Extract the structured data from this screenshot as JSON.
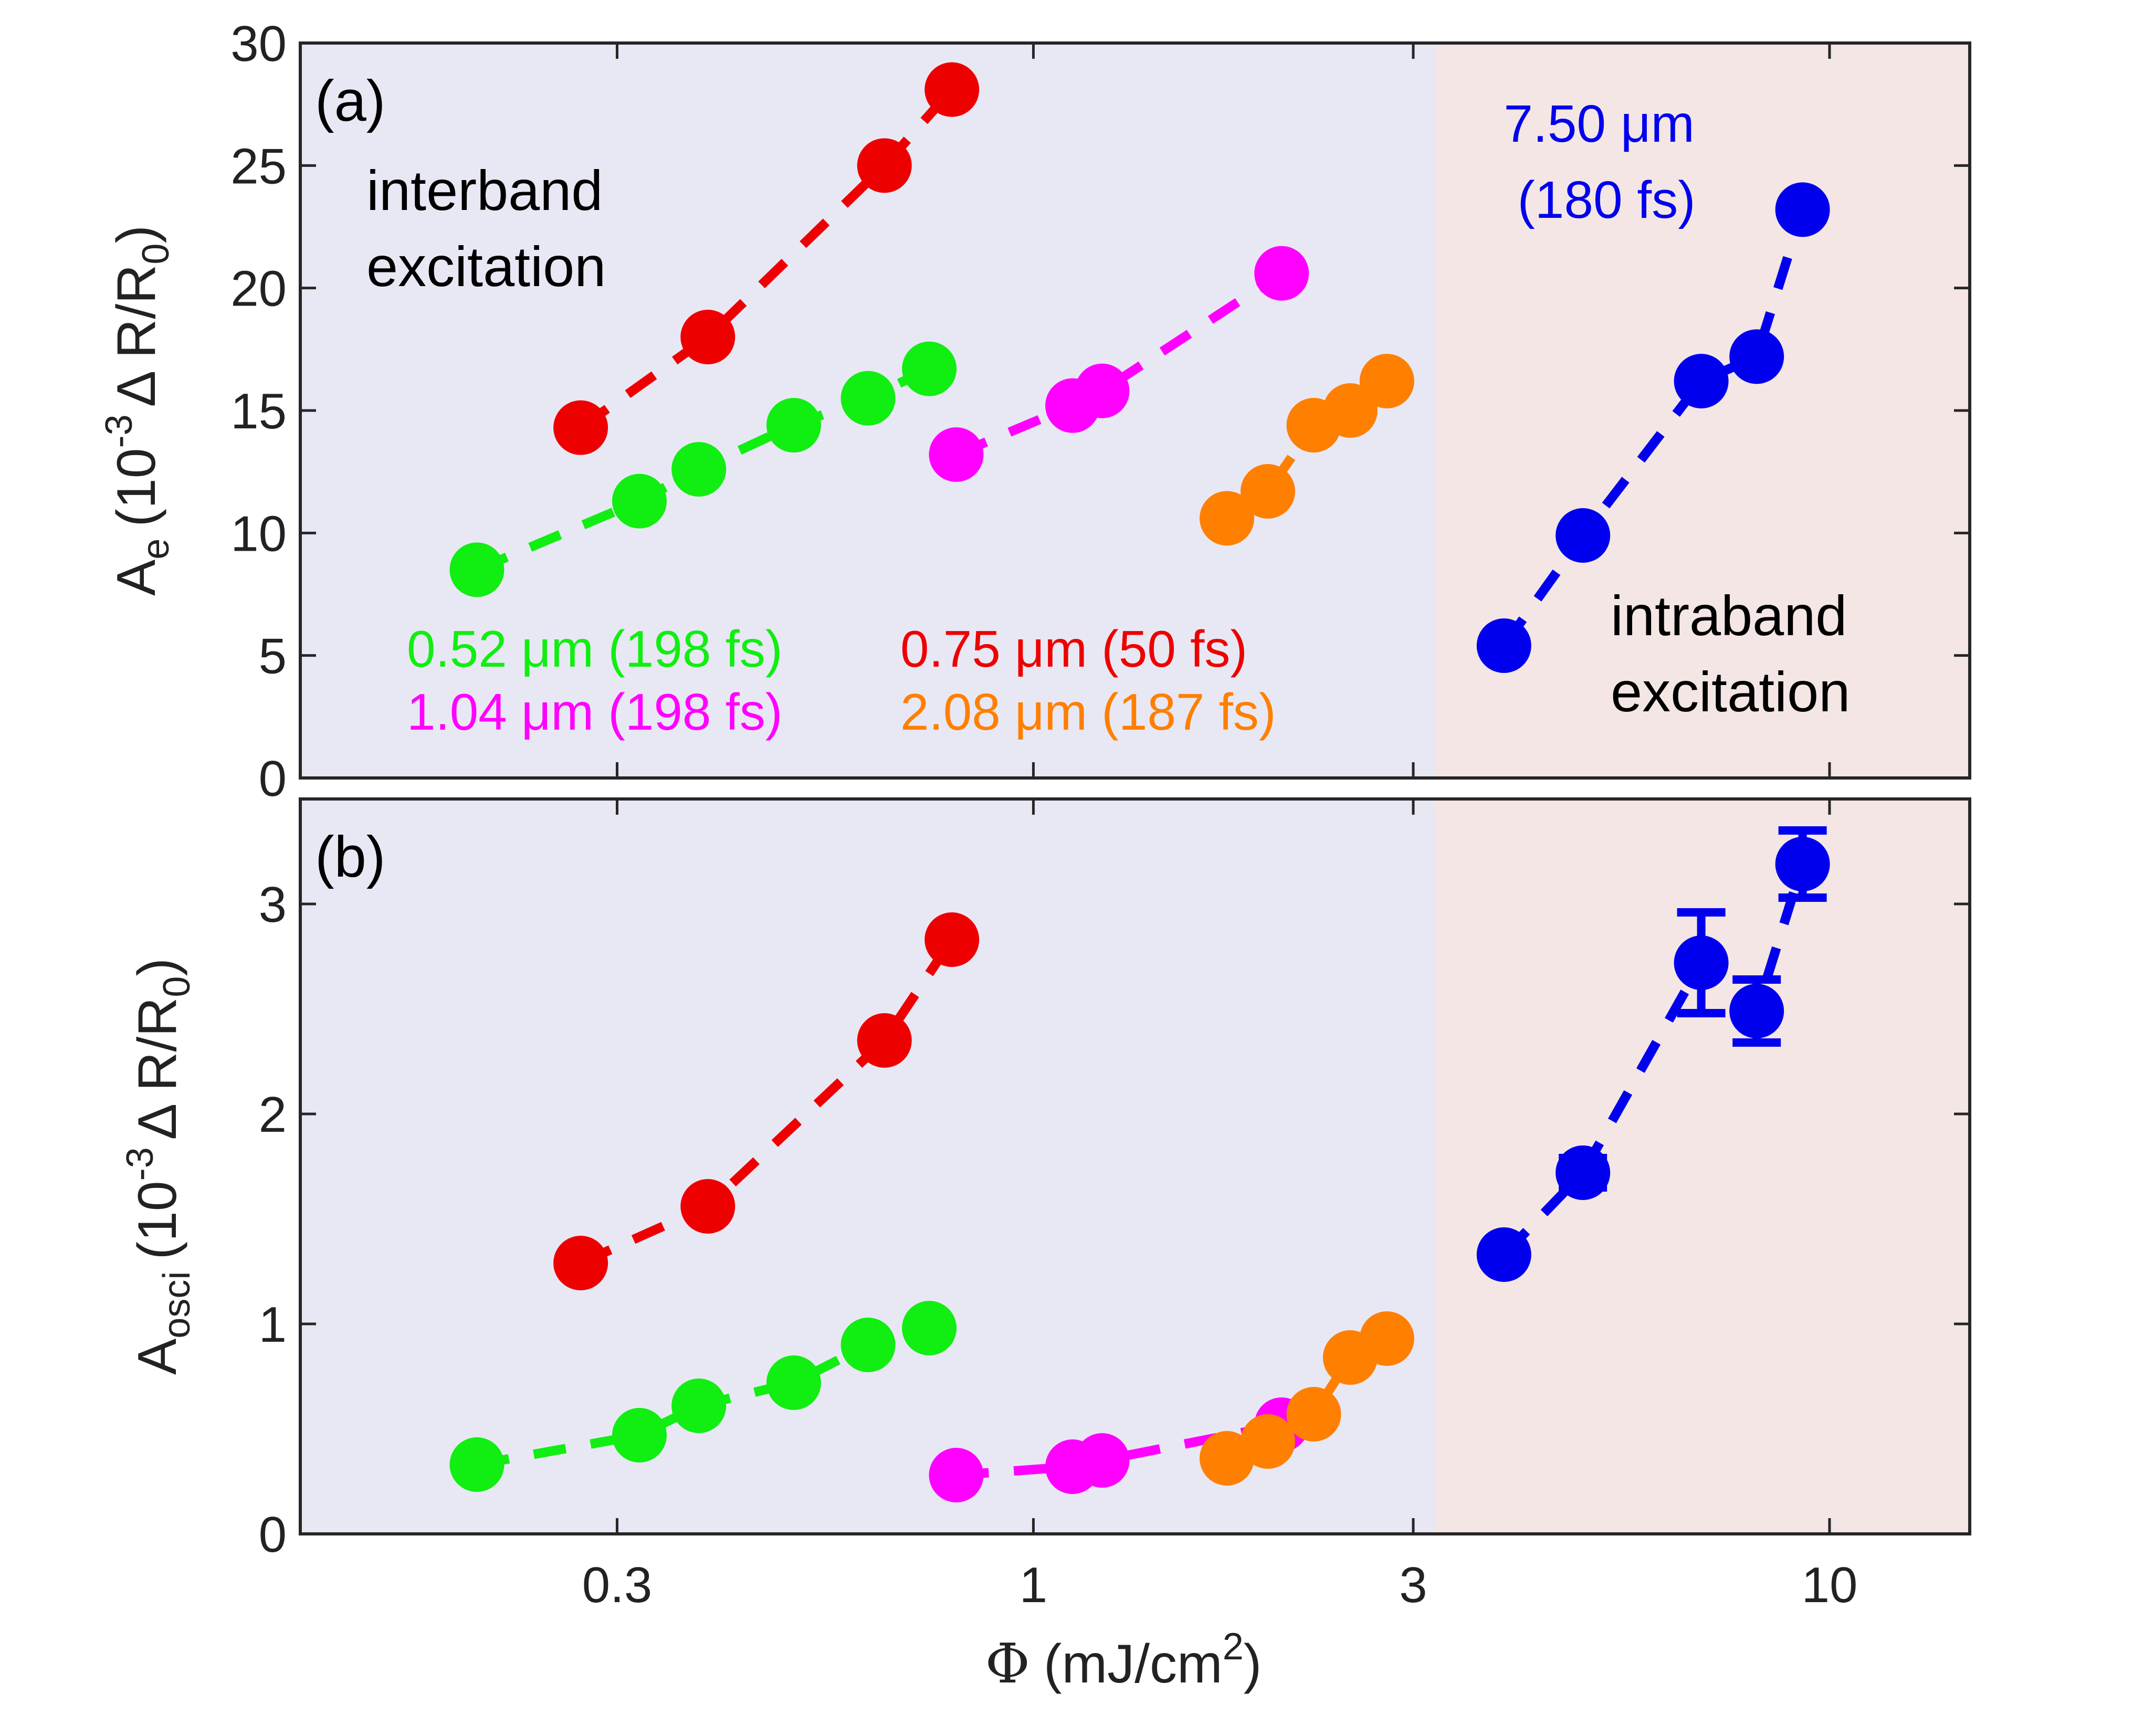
{
  "figure": {
    "xlabel_symbol": "Φ",
    "xlabel_unit": "(mJ/cm",
    "xlabel_sup": "2",
    "xlabel_close": ")"
  },
  "chart_data": [
    {
      "type": "scatter",
      "panel_label": "(a)",
      "ylabel": {
        "main": "A",
        "sub": "e",
        "open": "(10",
        "sup": "-3",
        "mid": "Δ R/R",
        "sub2": "0",
        "close": ")"
      },
      "xscale": "log",
      "xlim": [
        0.12,
        15
      ],
      "ylim": [
        0,
        30
      ],
      "yticks": [
        0,
        5,
        10,
        15,
        20,
        25,
        30
      ],
      "regions": [
        {
          "name": "interband",
          "x_from": 0.12,
          "x_to": 3.2,
          "color": "#e8e8f4"
        },
        {
          "name": "intraband",
          "x_from": 3.2,
          "x_to": 15,
          "color": "#f4e6e4"
        }
      ],
      "annotations": [
        {
          "lines": [
            "interband",
            "excitation"
          ],
          "color": "#000000"
        },
        {
          "lines": [
            "intraband",
            "excitation"
          ],
          "color": "#000000"
        },
        {
          "lines": [
            "7.50 μm",
            "(180 fs)"
          ],
          "color": "#0000ee"
        }
      ],
      "legend_entries": [
        {
          "text": "0.52 μm (198 fs)",
          "color": "#11ee11"
        },
        {
          "text": "0.75 μm (50 fs)",
          "color": "#ee0000"
        },
        {
          "text": "1.04 μm (198 fs)",
          "color": "#ff00ff"
        },
        {
          "text": "2.08 μm (187 fs)",
          "color": "#ff7f00"
        }
      ],
      "series": [
        {
          "name": "0.52 μm (198 fs)",
          "color": "#11ee11",
          "x": [
            0.2,
            0.32,
            0.38,
            0.5,
            0.62,
            0.74
          ],
          "y": [
            8.5,
            11.3,
            12.6,
            14.4,
            15.5,
            16.7
          ]
        },
        {
          "name": "0.75 μm (50 fs)",
          "color": "#ee0000",
          "x": [
            0.27,
            0.39,
            0.65,
            0.79
          ],
          "y": [
            14.3,
            18.0,
            25.0,
            28.1
          ]
        },
        {
          "name": "1.04 μm (198 fs)",
          "color": "#ff00ff",
          "x": [
            0.8,
            1.12,
            1.22,
            2.05
          ],
          "y": [
            13.2,
            15.2,
            15.8,
            20.6
          ]
        },
        {
          "name": "2.08 μm (187 fs)",
          "color": "#ff7f00",
          "x": [
            1.75,
            1.97,
            2.25,
            2.5,
            2.78
          ],
          "y": [
            10.6,
            11.7,
            14.4,
            15.0,
            16.2
          ]
        },
        {
          "name": "7.50 μm (180 fs)",
          "color": "#0000ee",
          "x": [
            3.9,
            4.9,
            6.9,
            8.1,
            9.25
          ],
          "y": [
            5.4,
            9.9,
            16.2,
            17.2,
            23.2
          ]
        }
      ]
    },
    {
      "type": "scatter",
      "panel_label": "(b)",
      "ylabel": {
        "main": "A",
        "sub": "osci",
        "open": "(10",
        "sup": "-3",
        "mid": "Δ R/R",
        "sub2": "0",
        "close": ")"
      },
      "xscale": "log",
      "xlim": [
        0.12,
        15
      ],
      "ylim": [
        0,
        3.5
      ],
      "yticks": [
        0,
        1,
        2,
        3
      ],
      "xticks": [
        0.3,
        1,
        3,
        10
      ],
      "xticklabels": [
        "0.3",
        "1",
        "3",
        "10"
      ],
      "series": [
        {
          "name": "0.52 μm (198 fs)",
          "color": "#11ee11",
          "x": [
            0.2,
            0.32,
            0.38,
            0.5,
            0.62,
            0.74
          ],
          "y": [
            0.33,
            0.47,
            0.61,
            0.72,
            0.9,
            0.98
          ]
        },
        {
          "name": "0.75 μm (50 fs)",
          "color": "#ee0000",
          "x": [
            0.27,
            0.39,
            0.65,
            0.79
          ],
          "y": [
            1.29,
            1.56,
            2.35,
            2.83
          ]
        },
        {
          "name": "1.04 μm (198 fs)",
          "color": "#ff00ff",
          "x": [
            0.8,
            1.12,
            1.22,
            2.05
          ],
          "y": [
            0.28,
            0.32,
            0.35,
            0.52
          ]
        },
        {
          "name": "2.08 μm (187 fs)",
          "color": "#ff7f00",
          "x": [
            1.75,
            1.97,
            2.25,
            2.5,
            2.78
          ],
          "y": [
            0.36,
            0.44,
            0.57,
            0.84,
            0.93
          ]
        },
        {
          "name": "7.50 μm (180 fs)",
          "color": "#0000ee",
          "x": [
            3.9,
            4.9,
            6.9,
            8.1,
            9.25
          ],
          "y": [
            1.33,
            1.72,
            2.72,
            2.49,
            3.19
          ],
          "yerr": [
            0.03,
            0.07,
            0.24,
            0.15,
            0.16
          ]
        }
      ]
    }
  ]
}
